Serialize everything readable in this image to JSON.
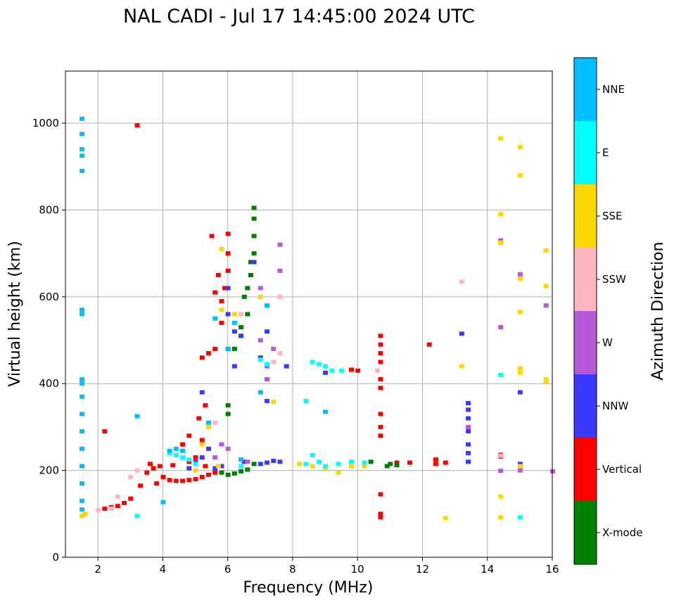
{
  "chart_data": {
    "type": "scatter",
    "title": "NAL CADI - Jul 17 14:45:00 2024 UTC",
    "xlabel": "Frequency (MHz)",
    "ylabel": "Virtual height (km)",
    "xlim": [
      1,
      16
    ],
    "ylim": [
      0,
      1120
    ],
    "xticks": [
      2,
      4,
      6,
      8,
      10,
      12,
      14,
      16
    ],
    "xtick_labels": [
      "2",
      "4",
      "6",
      "8",
      "10",
      "12",
      "14",
      "16"
    ],
    "yticks": [
      0,
      200,
      400,
      600,
      800,
      1000
    ],
    "ytick_labels": [
      "0",
      "200",
      "400",
      "600",
      "800",
      "1000"
    ],
    "grid": true,
    "colorbar": {
      "label": "Azimuth Direction",
      "categories": [
        {
          "name": "X-mode",
          "color": "#008000"
        },
        {
          "name": "Vertical",
          "color": "#ff0000"
        },
        {
          "name": "NNW",
          "color": "#3a3aff"
        },
        {
          "name": "W",
          "color": "#b45ad6"
        },
        {
          "name": "SSW",
          "color": "#ffb6c1"
        },
        {
          "name": "SSE",
          "color": "#ffd700"
        },
        {
          "name": "E",
          "color": "#00ffff"
        },
        {
          "name": "NNE",
          "color": "#00bfff"
        }
      ]
    },
    "series": [
      {
        "name": "Vertical",
        "points": [
          [
            2.2,
            112
          ],
          [
            2.4,
            115
          ],
          [
            2.6,
            118
          ],
          [
            2.8,
            125
          ],
          [
            3.0,
            135
          ],
          [
            3.3,
            165
          ],
          [
            3.5,
            195
          ],
          [
            3.7,
            205
          ],
          [
            3.8,
            170
          ],
          [
            4.0,
            185
          ],
          [
            4.2,
            178
          ],
          [
            4.4,
            176
          ],
          [
            4.6,
            176
          ],
          [
            4.8,
            178
          ],
          [
            5.0,
            180
          ],
          [
            5.2,
            185
          ],
          [
            5.4,
            190
          ],
          [
            5.6,
            195
          ],
          [
            3.6,
            215
          ],
          [
            3.9,
            210
          ],
          [
            4.3,
            212
          ],
          [
            4.8,
            220
          ],
          [
            5.3,
            210
          ],
          [
            4.6,
            260
          ],
          [
            5.0,
            230
          ],
          [
            5.2,
            270
          ],
          [
            5.1,
            320
          ],
          [
            5.3,
            350
          ],
          [
            5.2,
            460
          ],
          [
            5.4,
            470
          ],
          [
            5.6,
            480
          ],
          [
            5.8,
            540
          ],
          [
            5.8,
            590
          ],
          [
            5.9,
            620
          ],
          [
            6.0,
            660
          ],
          [
            6.0,
            700
          ],
          [
            6.0,
            745
          ],
          [
            5.5,
            740
          ],
          [
            5.6,
            610
          ],
          [
            5.7,
            650
          ],
          [
            4.8,
            280
          ],
          [
            10.0,
            430
          ],
          [
            9.8,
            432
          ],
          [
            10.7,
            510
          ],
          [
            10.7,
            490
          ],
          [
            10.7,
            470
          ],
          [
            10.7,
            450
          ],
          [
            10.7,
            410
          ],
          [
            10.7,
            390
          ],
          [
            10.7,
            330
          ],
          [
            10.7,
            300
          ],
          [
            10.7,
            280
          ],
          [
            10.7,
            145
          ],
          [
            10.7,
            100
          ],
          [
            10.7,
            92
          ],
          [
            11.2,
            218
          ],
          [
            11.6,
            218
          ],
          [
            12.2,
            490
          ],
          [
            12.4,
            225
          ],
          [
            12.4,
            215
          ],
          [
            12.7,
            218
          ],
          [
            14.4,
            232
          ],
          [
            14.4,
            236
          ],
          [
            3.2,
            995
          ],
          [
            2.2,
            290
          ]
        ]
      },
      {
        "name": "X-mode",
        "points": [
          [
            5.8,
            195
          ],
          [
            6.0,
            190
          ],
          [
            6.2,
            193
          ],
          [
            6.4,
            198
          ],
          [
            6.6,
            202
          ],
          [
            6.8,
            215
          ],
          [
            6.0,
            480
          ],
          [
            6.2,
            480
          ],
          [
            6.4,
            510
          ],
          [
            6.6,
            560
          ],
          [
            6.6,
            620
          ],
          [
            6.7,
            650
          ],
          [
            6.7,
            680
          ],
          [
            6.8,
            700
          ],
          [
            6.8,
            740
          ],
          [
            6.8,
            780
          ],
          [
            6.8,
            805
          ],
          [
            6.0,
            330
          ],
          [
            6.0,
            350
          ],
          [
            6.4,
            530
          ],
          [
            6.5,
            600
          ],
          [
            10.4,
            220
          ],
          [
            10.9,
            210
          ],
          [
            11.0,
            215
          ],
          [
            11.2,
            212
          ]
        ]
      },
      {
        "name": "NNW",
        "points": [
          [
            4.8,
            205
          ],
          [
            5.0,
            220
          ],
          [
            5.2,
            230
          ],
          [
            5.4,
            250
          ],
          [
            5.6,
            205
          ],
          [
            5.8,
            210
          ],
          [
            6.5,
            220
          ],
          [
            7.0,
            215
          ],
          [
            7.2,
            218
          ],
          [
            7.4,
            222
          ],
          [
            7.6,
            220
          ],
          [
            6.2,
            440
          ],
          [
            6.0,
            560
          ],
          [
            6.0,
            620
          ],
          [
            6.2,
            520
          ],
          [
            6.4,
            510
          ],
          [
            6.8,
            680
          ],
          [
            7.2,
            520
          ],
          [
            7.0,
            460
          ],
          [
            7.2,
            360
          ],
          [
            5.2,
            380
          ],
          [
            7.8,
            440
          ],
          [
            9.0,
            425
          ],
          [
            13.4,
            355
          ],
          [
            13.4,
            340
          ],
          [
            13.4,
            320
          ],
          [
            13.4,
            290
          ],
          [
            13.4,
            260
          ],
          [
            13.4,
            240
          ],
          [
            13.4,
            220
          ],
          [
            15.0,
            380
          ],
          [
            15.0,
            215
          ],
          [
            13.2,
            515
          ]
        ]
      },
      {
        "name": "W",
        "points": [
          [
            5.6,
            230
          ],
          [
            5.8,
            260
          ],
          [
            6.0,
            250
          ],
          [
            6.6,
            220
          ],
          [
            7.0,
            620
          ],
          [
            7.0,
            500
          ],
          [
            7.2,
            440
          ],
          [
            7.4,
            480
          ],
          [
            7.6,
            660
          ],
          [
            7.6,
            720
          ],
          [
            7.2,
            410
          ],
          [
            14.4,
            530
          ],
          [
            14.4,
            730
          ],
          [
            15.0,
            652
          ],
          [
            15.0,
            200
          ],
          [
            15.8,
            580
          ],
          [
            13.4,
            300
          ],
          [
            14.4,
            199
          ],
          [
            16.0,
            198
          ]
        ]
      },
      {
        "name": "SSW",
        "points": [
          [
            2.0,
            108
          ],
          [
            2.4,
            112
          ],
          [
            2.6,
            140
          ],
          [
            3.0,
            185
          ],
          [
            3.2,
            200
          ],
          [
            5.6,
            310
          ],
          [
            6.4,
            560
          ],
          [
            7.4,
            450
          ],
          [
            7.6,
            470
          ],
          [
            7.6,
            600
          ],
          [
            10.6,
            430
          ],
          [
            13.2,
            635
          ],
          [
            14.4,
            724
          ],
          [
            14.4,
            234
          ]
        ]
      },
      {
        "name": "SSE",
        "points": [
          [
            1.5,
            95
          ],
          [
            1.6,
            100
          ],
          [
            5.0,
            200
          ],
          [
            5.2,
            260
          ],
          [
            5.4,
            300
          ],
          [
            5.7,
            210
          ],
          [
            5.8,
            710
          ],
          [
            5.8,
            570
          ],
          [
            6.2,
            560
          ],
          [
            7.0,
            600
          ],
          [
            7.4,
            358
          ],
          [
            8.2,
            215
          ],
          [
            8.6,
            210
          ],
          [
            9.0,
            205
          ],
          [
            9.4,
            195
          ],
          [
            9.8,
            210
          ],
          [
            10.2,
            210
          ],
          [
            13.2,
            440
          ],
          [
            14.4,
            965
          ],
          [
            14.4,
            790
          ],
          [
            14.4,
            725
          ],
          [
            14.4,
            140
          ],
          [
            14.4,
            92
          ],
          [
            12.7,
            90
          ],
          [
            15.0,
            945
          ],
          [
            15.0,
            880
          ],
          [
            15.0,
            642
          ],
          [
            15.0,
            565
          ],
          [
            15.0,
            435
          ],
          [
            15.0,
            425
          ],
          [
            15.0,
            210
          ],
          [
            15.8,
            707
          ],
          [
            15.8,
            625
          ],
          [
            15.8,
            410
          ],
          [
            15.8,
            405
          ]
        ]
      },
      {
        "name": "E",
        "points": [
          [
            4.2,
            240
          ],
          [
            4.4,
            235
          ],
          [
            4.6,
            230
          ],
          [
            4.8,
            225
          ],
          [
            5.0,
            215
          ],
          [
            6.4,
            210
          ],
          [
            8.4,
            215
          ],
          [
            8.6,
            235
          ],
          [
            8.8,
            220
          ],
          [
            9.0,
            210
          ],
          [
            9.4,
            215
          ],
          [
            9.8,
            220
          ],
          [
            10.2,
            218
          ],
          [
            8.4,
            360
          ],
          [
            8.6,
            450
          ],
          [
            8.8,
            445
          ],
          [
            9.0,
            440
          ],
          [
            9.2,
            430
          ],
          [
            9.5,
            430
          ],
          [
            7.2,
            445
          ],
          [
            7.0,
            455
          ],
          [
            14.4,
            420
          ],
          [
            15.0,
            92
          ],
          [
            3.2,
            95
          ]
        ]
      },
      {
        "name": "NNE",
        "points": [
          [
            1.5,
            1010
          ],
          [
            1.5,
            975
          ],
          [
            1.5,
            940
          ],
          [
            1.5,
            925
          ],
          [
            1.5,
            890
          ],
          [
            1.5,
            570
          ],
          [
            1.5,
            560
          ],
          [
            1.5,
            410
          ],
          [
            1.5,
            400
          ],
          [
            1.5,
            370
          ],
          [
            1.5,
            330
          ],
          [
            1.5,
            290
          ],
          [
            1.5,
            250
          ],
          [
            1.5,
            210
          ],
          [
            1.5,
            170
          ],
          [
            1.5,
            130
          ],
          [
            1.5,
            110
          ],
          [
            3.2,
            325
          ],
          [
            4.2,
            245
          ],
          [
            4.4,
            250
          ],
          [
            4.6,
            245
          ],
          [
            5.4,
            310
          ],
          [
            5.6,
            550
          ],
          [
            6.0,
            480
          ],
          [
            6.2,
            540
          ],
          [
            6.4,
            225
          ],
          [
            7.0,
            380
          ],
          [
            7.2,
            580
          ],
          [
            9.0,
            335
          ],
          [
            4.0,
            127
          ]
        ]
      }
    ]
  }
}
